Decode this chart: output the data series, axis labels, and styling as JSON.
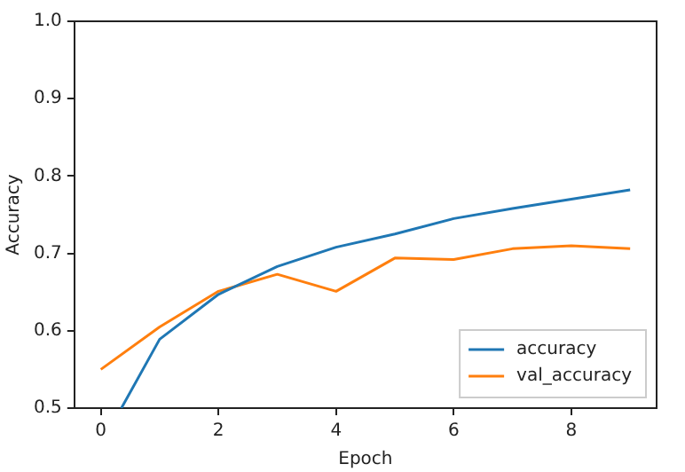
{
  "chart_data": {
    "type": "line",
    "xlabel": "Epoch",
    "ylabel": "Accuracy",
    "x": [
      0,
      1,
      2,
      3,
      4,
      5,
      6,
      7,
      8,
      9
    ],
    "series": [
      {
        "name": "accuracy",
        "color": "#1f77b4",
        "x": [
          0.35,
          1,
          2,
          3,
          4,
          5,
          6,
          7,
          8,
          9
        ],
        "values": [
          0.5,
          0.589,
          0.647,
          0.683,
          0.708,
          0.725,
          0.745,
          0.758,
          0.77,
          0.782
        ]
      },
      {
        "name": "val_accuracy",
        "color": "#ff7f0e",
        "values": [
          0.55,
          0.605,
          0.651,
          0.673,
          0.651,
          0.694,
          0.692,
          0.706,
          0.71,
          0.706
        ]
      }
    ],
    "xlim": [
      -0.45,
      9.45
    ],
    "ylim": [
      0.5,
      1.0
    ],
    "xticks": [
      0,
      2,
      4,
      6,
      8
    ],
    "yticks": [
      0.5,
      0.6,
      0.7,
      0.8,
      0.9,
      {
        "value": 1.0,
        "label": "1.0"
      }
    ],
    "grid": false,
    "legend": "bottom right",
    "marker": "none",
    "line_style": "solid"
  }
}
